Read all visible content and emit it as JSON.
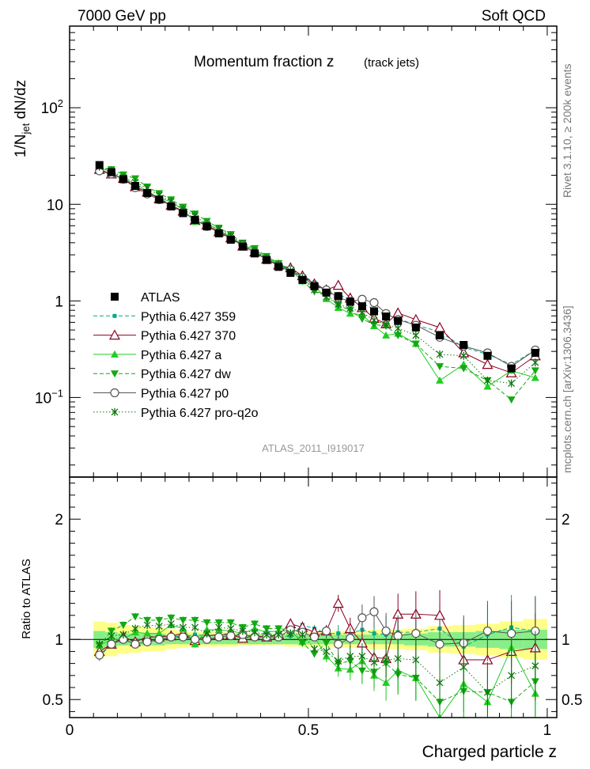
{
  "header": {
    "left": "7000 GeV pp",
    "right": "Soft QCD"
  },
  "title": {
    "main": "Momentum fraction z",
    "sub": "(track jets)"
  },
  "side_labels": {
    "rivet": "Rivet 3.1.10, ≥ 200k events",
    "mcplots": "mcplots.cern.ch [arXiv:1306.3436]"
  },
  "analysis_id": "ATLAS_2011_I919017",
  "axes": {
    "upper_ylabel": "1/N_jet dN/dz",
    "lower_ylabel": "Ratio to ATLAS",
    "xlabel": "Charged particle z",
    "x_ticks": [
      "0",
      "0.5",
      "1"
    ],
    "upper_y_ticks": [
      "10^-1",
      "1",
      "10",
      "10^2"
    ],
    "lower_y_ticks": [
      "0.5",
      "1",
      "2"
    ]
  },
  "legend": {
    "placement": "left-middle",
    "items": [
      {
        "label": "ATLAS",
        "marker": "filled-square",
        "color": "#000000",
        "dash": "none"
      },
      {
        "label": "Pythia 6.427 359",
        "marker": "small-square",
        "color": "#00aa88",
        "dash": "dashed"
      },
      {
        "label": "Pythia 6.427 370",
        "marker": "open-triangle",
        "color": "#8b0020",
        "dash": "solid"
      },
      {
        "label": "Pythia 6.427 a",
        "marker": "filled-triangle",
        "color": "#22cc22",
        "dash": "solid"
      },
      {
        "label": "Pythia 6.427 dw",
        "marker": "filled-triangle-down",
        "color": "#11aa11",
        "dash": "dashed"
      },
      {
        "label": "Pythia 6.427 p0",
        "marker": "open-circle",
        "color": "#555555",
        "dash": "solid"
      },
      {
        "label": "Pythia 6.427 pro-q2o",
        "marker": "star",
        "color": "#117711",
        "dash": "dotted"
      }
    ]
  },
  "chart_data": {
    "type": "line",
    "x": [
      0.0625,
      0.0875,
      0.1125,
      0.1375,
      0.1625,
      0.1875,
      0.2125,
      0.2375,
      0.2625,
      0.2875,
      0.3125,
      0.3375,
      0.3625,
      0.3875,
      0.4125,
      0.4375,
      0.4625,
      0.4875,
      0.5125,
      0.5375,
      0.5625,
      0.5875,
      0.6125,
      0.6375,
      0.6625,
      0.6875,
      0.725,
      0.775,
      0.825,
      0.875,
      0.925,
      0.975
    ],
    "xlim": [
      0,
      1.02
    ],
    "upper_ylim": [
      0.015,
      700
    ],
    "upper_log_scale": true,
    "lower_ylim": [
      0.35,
      2.35
    ],
    "series": [
      {
        "name": "ATLAS",
        "values": [
          25.5,
          21.5,
          18.2,
          15.5,
          13.1,
          11.2,
          9.5,
          8.1,
          6.9,
          5.9,
          5.0,
          4.3,
          3.65,
          3.1,
          2.65,
          2.25,
          1.95,
          1.65,
          1.42,
          1.22,
          1.12,
          0.98,
          0.88,
          0.78,
          0.69,
          0.62,
          0.53,
          0.44,
          0.35,
          0.27,
          0.2,
          0.29
        ],
        "ratio": [
          1,
          1,
          1,
          1,
          1,
          1,
          1,
          1,
          1,
          1,
          1,
          1,
          1,
          1,
          1,
          1,
          1,
          1,
          1,
          1,
          1,
          1,
          1,
          1,
          1,
          1,
          1,
          1,
          1,
          1,
          1,
          1
        ]
      },
      {
        "name": "Pythia 6.427 359",
        "values": [
          21.7,
          20.9,
          18.0,
          15.3,
          13.4,
          11.6,
          9.8,
          8.3,
          7.2,
          6.1,
          5.2,
          4.5,
          3.8,
          3.2,
          2.8,
          2.3,
          2.0,
          1.85,
          1.55,
          1.28,
          1.18,
          1.03,
          0.95,
          0.82,
          0.72,
          0.66,
          0.56,
          0.48,
          0.33,
          0.28,
          0.22,
          0.31
        ],
        "ratio": [
          0.85,
          0.97,
          0.99,
          0.99,
          1.02,
          1.03,
          1.03,
          1.02,
          1.04,
          1.03,
          1.04,
          1.05,
          1.04,
          1.03,
          1.06,
          1.02,
          1.03,
          1.12,
          1.09,
          1.05,
          1.05,
          1.05,
          1.08,
          1.05,
          1.04,
          1.06,
          1.06,
          1.09,
          0.94,
          1.04,
          1.1,
          1.07
        ]
      },
      {
        "name": "Pythia 6.427 370",
        "values": [
          23.0,
          20.6,
          18.6,
          15.2,
          13.4,
          11.4,
          9.8,
          8.5,
          6.8,
          6.1,
          5.2,
          4.5,
          3.7,
          3.2,
          2.7,
          2.35,
          2.2,
          1.82,
          1.5,
          1.3,
          1.45,
          1.07,
          0.85,
          0.66,
          0.58,
          0.75,
          0.64,
          0.53,
          0.29,
          0.22,
          0.18,
          0.27
        ],
        "ratio": [
          0.9,
          0.96,
          1.02,
          0.98,
          1.02,
          1.02,
          1.03,
          1.05,
          0.99,
          1.03,
          1.04,
          1.04,
          1.01,
          1.03,
          1.02,
          1.04,
          1.13,
          1.1,
          1.06,
          1.07,
          1.3,
          1.09,
          0.97,
          0.85,
          0.84,
          1.21,
          1.21,
          1.2,
          0.83,
          0.83,
          0.9,
          0.93
        ]
      },
      {
        "name": "Pythia 6.427 a",
        "values": [
          24.2,
          21.5,
          18.2,
          16.4,
          13.7,
          11.7,
          10.6,
          8.8,
          6.6,
          6.4,
          5.4,
          4.6,
          3.8,
          3.4,
          2.8,
          2.4,
          2.1,
          1.6,
          1.45,
          1.05,
          0.85,
          0.74,
          0.72,
          0.55,
          0.44,
          0.46,
          0.36,
          0.15,
          0.22,
          0.13,
          0.19,
          0.16
        ],
        "ratio": [
          0.95,
          1.0,
          1.0,
          1.06,
          1.05,
          1.05,
          1.12,
          1.09,
          0.96,
          1.08,
          1.08,
          1.07,
          1.05,
          1.09,
          1.06,
          1.07,
          1.07,
          0.98,
          1.02,
          0.86,
          0.76,
          0.75,
          0.82,
          0.7,
          0.64,
          0.74,
          0.68,
          0.35,
          0.63,
          0.48,
          0.93,
          0.55
        ]
      },
      {
        "name": "Pythia 6.427 dw",
        "values": [
          24.2,
          23.0,
          20.3,
          18.5,
          15.2,
          13.0,
          11.2,
          9.4,
          8.0,
          6.7,
          5.7,
          4.9,
          4.0,
          3.5,
          2.9,
          2.45,
          2.1,
          1.6,
          1.25,
          1.18,
          0.9,
          0.8,
          0.65,
          0.57,
          0.55,
          0.44,
          0.36,
          0.21,
          0.2,
          0.15,
          0.095,
          0.19
        ],
        "ratio": [
          0.95,
          1.07,
          1.12,
          1.19,
          1.16,
          1.16,
          1.18,
          1.16,
          1.16,
          1.14,
          1.14,
          1.14,
          1.1,
          1.13,
          1.09,
          1.09,
          1.08,
          0.97,
          0.88,
          0.97,
          0.8,
          0.82,
          0.74,
          0.73,
          0.8,
          0.71,
          0.68,
          0.48,
          0.57,
          0.56,
          0.48,
          0.65
        ]
      },
      {
        "name": "Pythia 6.427 p0",
        "values": [
          22.2,
          20.6,
          18.2,
          14.9,
          12.8,
          11.2,
          9.7,
          8.3,
          6.9,
          5.9,
          5.1,
          4.45,
          3.8,
          3.15,
          2.7,
          2.3,
          2.1,
          1.75,
          1.45,
          1.3,
          1.08,
          0.99,
          1.04,
          0.96,
          0.74,
          0.64,
          0.56,
          0.42,
          0.34,
          0.29,
          0.21,
          0.31
        ],
        "ratio": [
          0.87,
          0.96,
          1.0,
          0.96,
          0.98,
          1.0,
          1.02,
          1.02,
          1.0,
          1.0,
          1.02,
          1.03,
          1.04,
          1.02,
          1.02,
          1.02,
          1.08,
          1.06,
          1.02,
          1.07,
          0.96,
          1.01,
          1.18,
          1.23,
          1.07,
          1.03,
          1.05,
          0.96,
          0.97,
          1.07,
          1.05,
          1.07
        ]
      },
      {
        "name": "Pythia 6.427 pro-q2o",
        "values": [
          24.5,
          22.2,
          18.9,
          16.9,
          14.7,
          12.4,
          10.7,
          8.9,
          7.6,
          6.2,
          5.5,
          4.7,
          3.9,
          3.3,
          2.75,
          2.35,
          2.05,
          1.72,
          1.3,
          1.1,
          0.92,
          0.84,
          0.76,
          0.63,
          0.57,
          0.52,
          0.44,
          0.28,
          0.27,
          0.15,
          0.14,
          0.23
        ],
        "ratio": [
          0.96,
          1.03,
          1.04,
          1.09,
          1.12,
          1.11,
          1.13,
          1.1,
          1.1,
          1.05,
          1.1,
          1.09,
          1.07,
          1.06,
          1.04,
          1.04,
          1.05,
          1.04,
          0.92,
          0.9,
          0.82,
          0.86,
          0.86,
          0.81,
          0.83,
          0.84,
          0.83,
          0.64,
          0.77,
          0.56,
          0.7,
          0.78
        ]
      }
    ],
    "atlas_band_inner": [
      0.07,
      0.06,
      0.05,
      0.05,
      0.05,
      0.05,
      0.04,
      0.04,
      0.04,
      0.04,
      0.04,
      0.04,
      0.04,
      0.04,
      0.04,
      0.04,
      0.04,
      0.04,
      0.04,
      0.04,
      0.04,
      0.04,
      0.04,
      0.04,
      0.04,
      0.04,
      0.05,
      0.06,
      0.06,
      0.07,
      0.08,
      0.08
    ],
    "atlas_band_outer": [
      0.15,
      0.14,
      0.12,
      0.11,
      0.1,
      0.1,
      0.08,
      0.07,
      0.06,
      0.06,
      0.06,
      0.06,
      0.05,
      0.05,
      0.05,
      0.05,
      0.06,
      0.06,
      0.06,
      0.06,
      0.07,
      0.07,
      0.07,
      0.08,
      0.08,
      0.08,
      0.09,
      0.11,
      0.12,
      0.13,
      0.15,
      0.17
    ],
    "grid": false
  }
}
